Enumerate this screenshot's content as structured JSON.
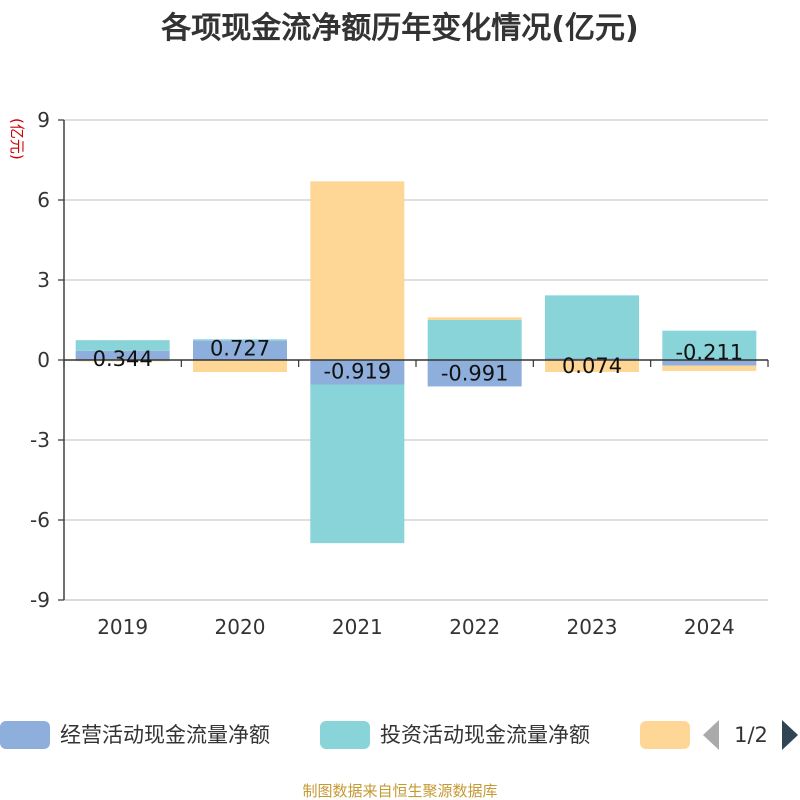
{
  "chart_data": {
    "type": "bar",
    "stacked": true,
    "title": "各项现金流净额历年变化情况(亿元)",
    "unit_label": "(亿元)",
    "categories": [
      "2019",
      "2020",
      "2021",
      "2022",
      "2023",
      "2024"
    ],
    "ylim": [
      -9,
      9
    ],
    "yticks": [
      9,
      6,
      3,
      0,
      -3,
      -6,
      -9
    ],
    "ytick_labels": [
      "9",
      "6",
      "3",
      "0",
      "-3",
      "-6",
      "-9"
    ],
    "grid": true,
    "series": [
      {
        "name": "经营活动现金流量净额",
        "color": "#8eaedb",
        "values": [
          0.344,
          0.727,
          -0.919,
          -0.991,
          0.074,
          -0.211
        ]
      },
      {
        "name": "投资活动现金流量净额",
        "color": "#88d4d8",
        "values": [
          0.4,
          0.05,
          -5.95,
          1.5,
          2.35,
          1.1
        ]
      },
      {
        "name": "",
        "color": "#fed797",
        "values": [
          -0.05,
          -0.45,
          6.7,
          0.1,
          -0.45,
          -0.2
        ]
      }
    ],
    "data_labels": [
      "0.344",
      "0.727",
      "-0.919",
      "-0.991",
      "0.074",
      "-0.211"
    ],
    "legend": {
      "placement": "bottom",
      "page": "1/2"
    }
  },
  "source": "制图数据来自恒生聚源数据库"
}
